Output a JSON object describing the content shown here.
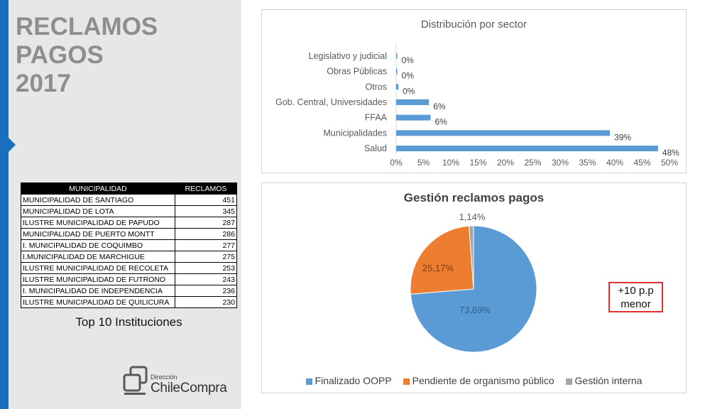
{
  "slide": {
    "title_line1": "RECLAMOS PAGOS",
    "title_line2": "2017",
    "callout_line1": "+10 p.p",
    "callout_line2": "menor"
  },
  "table": {
    "headers": [
      "MUNICIPALIDAD",
      "RECLAMOS"
    ],
    "rows": [
      {
        "name": "MUNICIPALIDAD DE SANTIAGO",
        "value": "451"
      },
      {
        "name": "MUNICIPALIDAD DE LOTA",
        "value": "345"
      },
      {
        "name": "ILUSTRE MUNICIPALIDAD DE PAPUDO",
        "value": "287"
      },
      {
        "name": "MUNICIPALIDAD DE PUERTO MONTT",
        "value": "286"
      },
      {
        "name": "I. MUNICIPALIDAD DE COQUIMBO",
        "value": "277"
      },
      {
        "name": "I.MUNICIPALIDAD DE MARCHIGUE",
        "value": "275"
      },
      {
        "name": "ILUSTRE MUNICIPALIDAD DE RECOLETA",
        "value": "253"
      },
      {
        "name": "ILUSTRE MUNICIPALIDAD DE FUTRONO",
        "value": "243"
      },
      {
        "name": "I. MUNICIPALIDAD DE INDEPENDENCIA",
        "value": "236"
      },
      {
        "name": "ILUSTRE MUNICIPALIDAD DE QUILICURA",
        "value": "230"
      }
    ],
    "caption": "Top 10 Instituciones"
  },
  "logo": {
    "small_text": "Dirección",
    "big_text": "ChileCompra"
  },
  "chart_data": [
    {
      "type": "bar",
      "orientation": "horizontal",
      "title": "Distribución por sector",
      "categories": [
        "Legislativo y judicial",
        "Obras Públicas",
        "Otros",
        "Gob. Central, Universidades",
        "FFAA",
        "Municipalidades",
        "Salud"
      ],
      "values": [
        0.1,
        0.2,
        0.4,
        6,
        6.3,
        39.1,
        47.9
      ],
      "data_labels": [
        "0%",
        "0%",
        "0%",
        "6%",
        "6%",
        "39%",
        "48%"
      ],
      "xlim": [
        0,
        50
      ],
      "xticks": [
        "0%",
        "5%",
        "10%",
        "15%",
        "20%",
        "25%",
        "30%",
        "35%",
        "40%",
        "45%",
        "50%"
      ],
      "grid": false,
      "color": "#5b9bd5"
    },
    {
      "type": "pie",
      "title": "Gestión reclamos pagos",
      "labels": [
        "Finalizado OOPP",
        "Pendiente de organismo público",
        "Gestión interna"
      ],
      "values": [
        73.69,
        25.17,
        1.14
      ],
      "data_labels": [
        "73,69%",
        "25,17%",
        "1,14%"
      ],
      "colors": [
        "#5b9bd5",
        "#ed7d31",
        "#a5a5a5"
      ],
      "legend": "bottom"
    }
  ]
}
